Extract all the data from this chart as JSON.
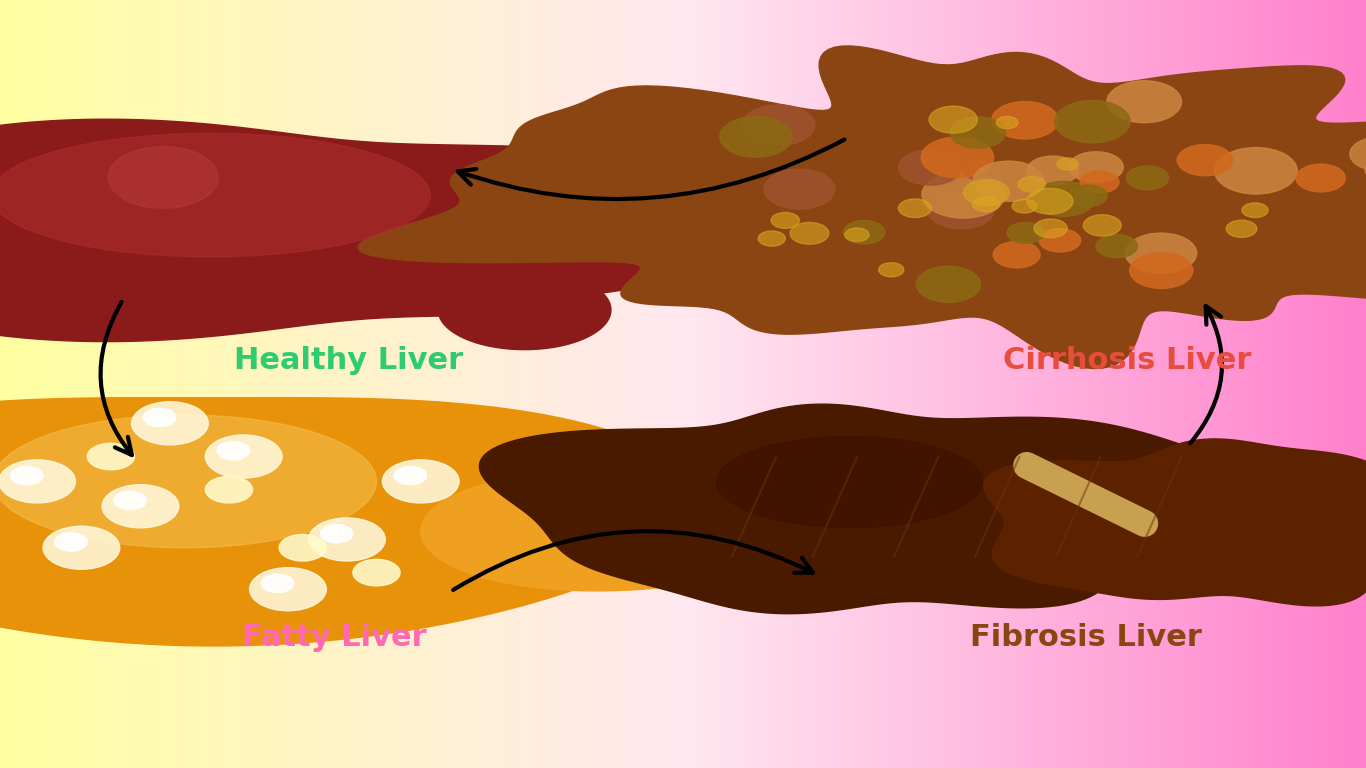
{
  "labels": {
    "healthy": "Healthy Liver",
    "cirrhosis": "Cirrhosis Liver",
    "fatty": "Fatty Liver",
    "fibrosis": "Fibrosis Liver"
  },
  "label_colors": {
    "healthy": "#2ecc71",
    "cirrhosis": "#e74c3c",
    "fatty": "#ff69b4",
    "fibrosis": "#8B4513"
  },
  "arrow_color": "#111111",
  "fontsize_label": 22,
  "figsize": [
    13.66,
    7.68
  ],
  "dpi": 100
}
